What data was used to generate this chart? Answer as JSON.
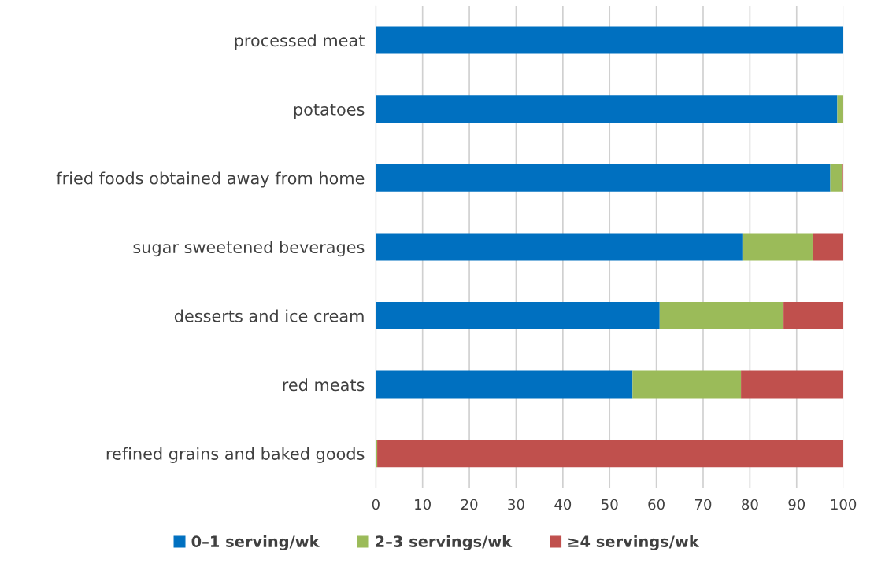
{
  "chart_data": {
    "type": "bar",
    "orientation": "horizontal",
    "stacked": true,
    "categories": [
      "processed meat",
      "potatoes",
      "fried foods obtained away from home",
      "sugar sweetened beverages",
      "desserts and ice cream",
      "red meats",
      "refined grains and baked goods"
    ],
    "series": [
      {
        "name": "0–1 serving/wk",
        "color": "#0070c0",
        "values": [
          100,
          98.7,
          97.2,
          78.4,
          60.7,
          54.9,
          0
        ]
      },
      {
        "name": "2–3 servings/wk",
        "color": "#9bbb59",
        "values": [
          0,
          1.1,
          2.5,
          15,
          26.5,
          23.2,
          0.3
        ]
      },
      {
        "name": "≥4 servings/wk",
        "color": "#c0504d",
        "values": [
          0,
          0.2,
          0.3,
          6.6,
          12.8,
          21.9,
          99.7
        ]
      }
    ],
    "xlim": [
      0,
      100
    ],
    "xticks": [
      0,
      10,
      20,
      30,
      40,
      50,
      60,
      70,
      80,
      90,
      100
    ],
    "grid": "x",
    "legend": "bottom"
  }
}
